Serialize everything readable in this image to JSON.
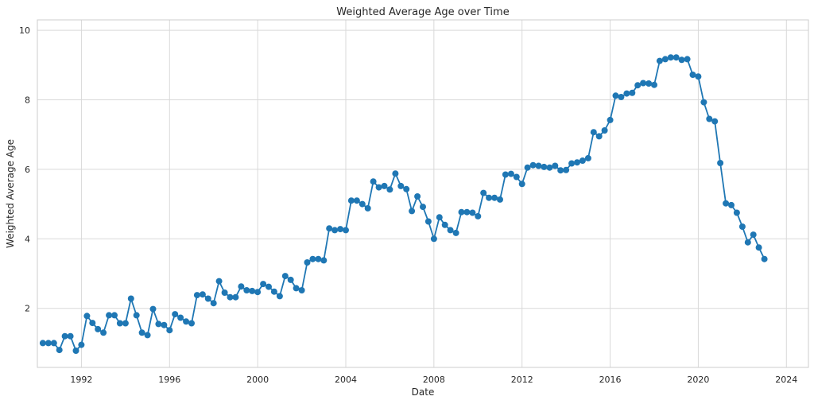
{
  "chart_data": {
    "type": "line",
    "title": "Weighted Average Age over Time",
    "xlabel": "Date",
    "ylabel": "Weighted Average Age",
    "xlim": [
      1990.0,
      2025.0
    ],
    "ylim": [
      0.3,
      10.3
    ],
    "x_ticks": [
      1992,
      1996,
      2000,
      2004,
      2008,
      2012,
      2016,
      2020,
      2024
    ],
    "y_ticks": [
      2,
      4,
      6,
      8,
      10
    ],
    "grid": true,
    "legend": "none",
    "colors": {
      "line": "#1f77b4",
      "grid": "#d9d9d9",
      "spine": "#cccccc"
    },
    "x_unit": "year",
    "series": [
      {
        "marker": "circle",
        "x": [
          1990.25,
          1990.5,
          1990.75,
          1991.0,
          1991.25,
          1991.5,
          1991.75,
          1992.0,
          1992.25,
          1992.5,
          1992.75,
          1993.0,
          1993.25,
          1993.5,
          1993.75,
          1994.0,
          1994.25,
          1994.5,
          1994.75,
          1995.0,
          1995.25,
          1995.5,
          1995.75,
          1996.0,
          1996.25,
          1996.5,
          1996.75,
          1997.0,
          1997.25,
          1997.5,
          1997.75,
          1998.0,
          1998.25,
          1998.5,
          1998.75,
          1999.0,
          1999.25,
          1999.5,
          1999.75,
          2000.0,
          2000.25,
          2000.5,
          2000.75,
          2001.0,
          2001.25,
          2001.5,
          2001.75,
          2002.0,
          2002.25,
          2002.5,
          2002.75,
          2003.0,
          2003.25,
          2003.5,
          2003.75,
          2004.0,
          2004.25,
          2004.5,
          2004.75,
          2005.0,
          2005.25,
          2005.5,
          2005.75,
          2006.0,
          2006.25,
          2006.5,
          2006.75,
          2007.0,
          2007.25,
          2007.5,
          2007.75,
          2008.0,
          2008.25,
          2008.5,
          2008.75,
          2009.0,
          2009.25,
          2009.5,
          2009.75,
          2010.0,
          2010.25,
          2010.5,
          2010.75,
          2011.0,
          2011.25,
          2011.5,
          2011.75,
          2012.0,
          2012.25,
          2012.5,
          2012.75,
          2013.0,
          2013.25,
          2013.5,
          2013.75,
          2014.0,
          2014.25,
          2014.5,
          2014.75,
          2015.0,
          2015.25,
          2015.5,
          2015.75,
          2016.0,
          2016.25,
          2016.5,
          2016.75,
          2017.0,
          2017.25,
          2017.5,
          2017.75,
          2018.0,
          2018.25,
          2018.5,
          2018.75,
          2019.0,
          2019.25,
          2019.5,
          2019.75,
          2020.0,
          2020.25,
          2020.5,
          2020.75,
          2021.0,
          2021.25,
          2021.5,
          2021.75,
          2022.0,
          2022.25,
          2022.5,
          2022.75,
          2023.0
        ],
        "y": [
          1.0,
          1.0,
          1.0,
          0.8,
          1.2,
          1.2,
          0.78,
          0.95,
          1.78,
          1.58,
          1.4,
          1.3,
          1.8,
          1.8,
          1.57,
          1.57,
          2.28,
          1.8,
          1.3,
          1.23,
          1.98,
          1.55,
          1.52,
          1.37,
          1.83,
          1.73,
          1.62,
          1.57,
          2.38,
          2.4,
          2.28,
          2.15,
          2.78,
          2.45,
          2.32,
          2.32,
          2.63,
          2.52,
          2.5,
          2.47,
          2.7,
          2.62,
          2.48,
          2.35,
          2.93,
          2.82,
          2.58,
          2.52,
          3.32,
          3.42,
          3.42,
          3.38,
          4.3,
          4.25,
          4.28,
          4.25,
          5.1,
          5.1,
          5.0,
          4.88,
          5.65,
          5.48,
          5.52,
          5.42,
          5.88,
          5.52,
          5.43,
          4.8,
          5.22,
          4.92,
          4.5,
          4.0,
          4.62,
          4.4,
          4.25,
          4.17,
          4.77,
          4.77,
          4.75,
          4.65,
          5.32,
          5.18,
          5.18,
          5.13,
          5.85,
          5.87,
          5.78,
          5.58,
          6.05,
          6.12,
          6.1,
          6.07,
          6.05,
          6.1,
          5.97,
          5.98,
          6.17,
          6.2,
          6.25,
          6.32,
          7.07,
          6.95,
          7.12,
          7.42,
          8.12,
          8.08,
          8.18,
          8.2,
          8.42,
          8.48,
          8.47,
          8.43,
          9.12,
          9.17,
          9.22,
          9.22,
          9.15,
          9.17,
          8.72,
          8.67,
          7.93,
          7.45,
          7.38,
          6.18,
          5.02,
          4.97,
          4.75,
          4.35,
          3.9,
          4.12,
          3.75,
          3.42
        ]
      }
    ]
  }
}
